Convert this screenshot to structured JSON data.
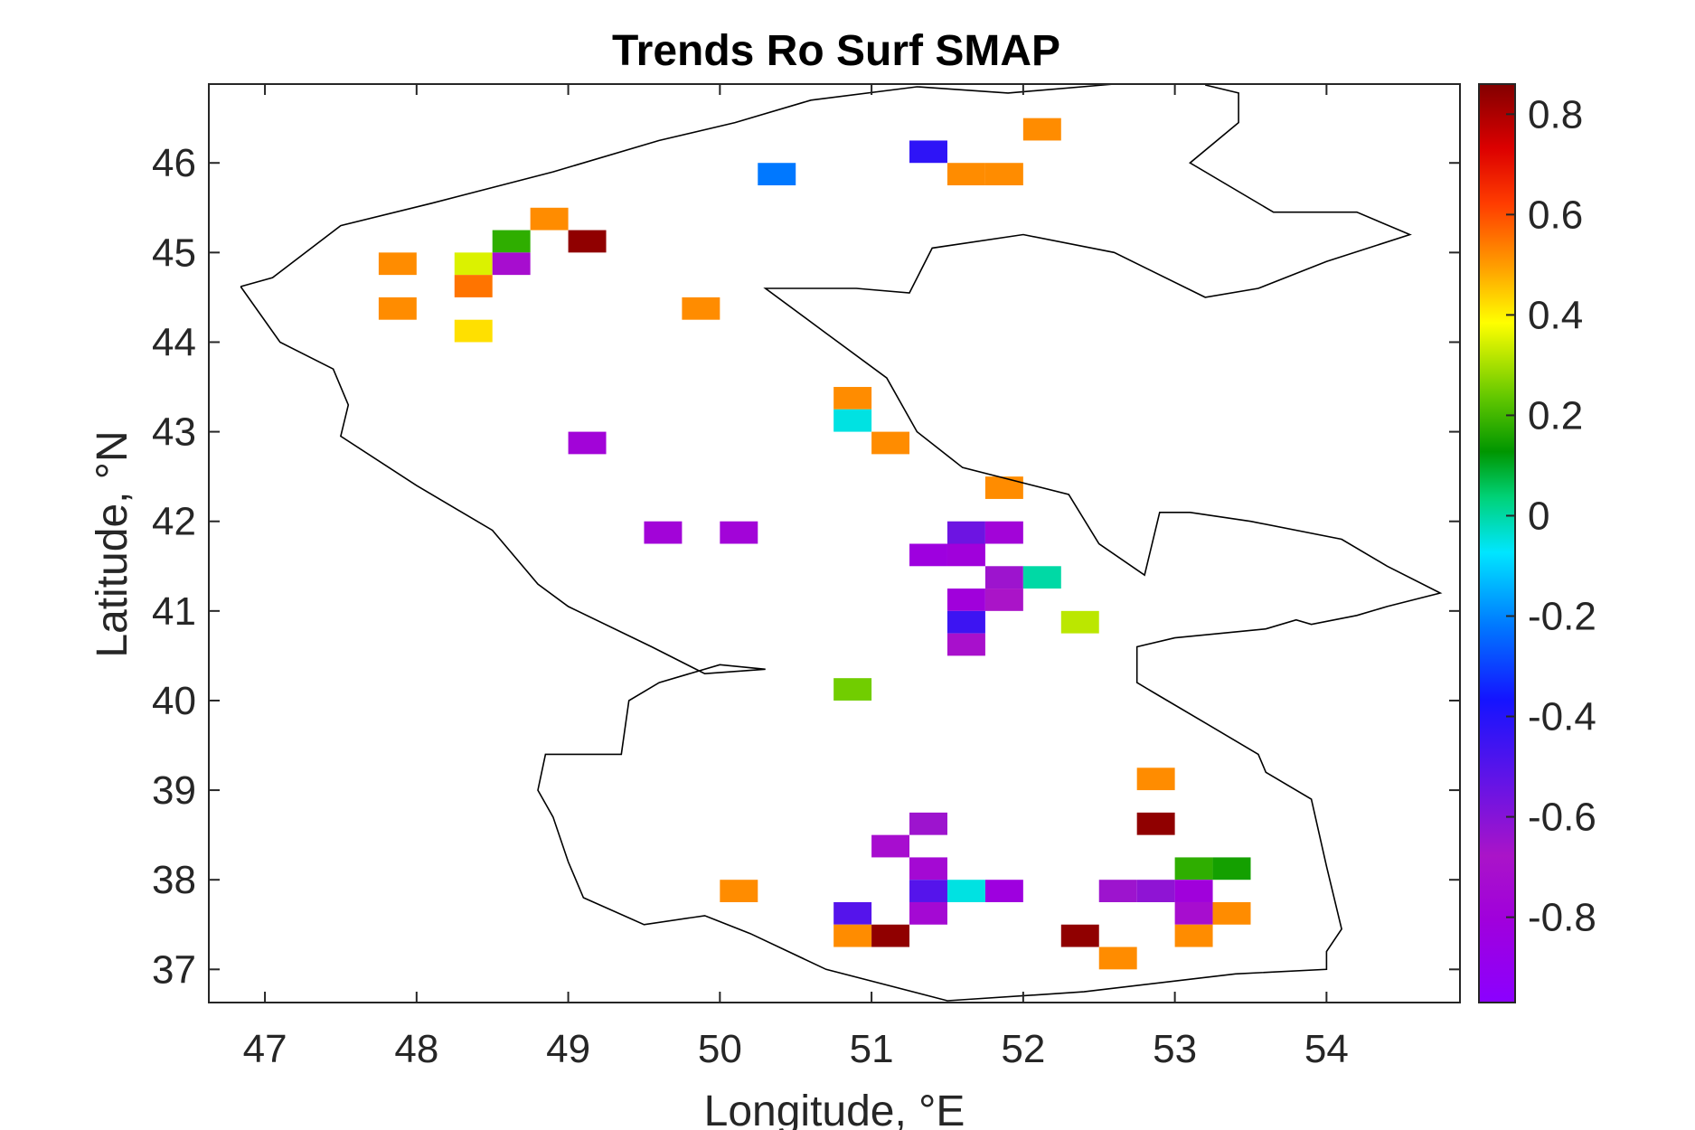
{
  "chart_data": {
    "type": "heatmap",
    "title": "Trends Ro Surf SMAP",
    "xlabel": "Longitude, °E",
    "ylabel": "Latitude, °N",
    "xlim": [
      46.63,
      54.88
    ],
    "ylim": [
      36.63,
      46.88
    ],
    "xticks": [
      47,
      48,
      49,
      50,
      51,
      52,
      53,
      54
    ],
    "yticks": [
      37,
      38,
      39,
      40,
      41,
      42,
      43,
      44,
      45,
      46
    ],
    "colorbar": {
      "range": [
        -0.97,
        0.86
      ],
      "ticks": [
        -0.8,
        -0.6,
        -0.4,
        -0.2,
        0,
        0.2,
        0.4,
        0.6,
        0.8
      ],
      "tick_labels": [
        "-0.8",
        "-0.6",
        "-0.4",
        "-0.2",
        "0",
        "0.2",
        "0.4",
        "0.6",
        "0.8"
      ],
      "colormap": "purple-blue-cyan-green-yellow-orange-red-darkred"
    },
    "cell_size_deg": 0.25,
    "grid": false,
    "cells": [
      {
        "lon": 52.125,
        "lat": 46.375,
        "value": 0.52
      },
      {
        "lon": 51.375,
        "lat": 46.125,
        "value": -0.42
      },
      {
        "lon": 50.375,
        "lat": 45.875,
        "value": -0.22
      },
      {
        "lon": 51.625,
        "lat": 45.875,
        "value": 0.52
      },
      {
        "lon": 51.875,
        "lat": 45.875,
        "value": 0.52
      },
      {
        "lon": 48.875,
        "lat": 45.375,
        "value": 0.52
      },
      {
        "lon": 48.625,
        "lat": 45.125,
        "value": 0.18
      },
      {
        "lon": 49.125,
        "lat": 45.125,
        "value": 0.84
      },
      {
        "lon": 47.875,
        "lat": 44.875,
        "value": 0.52
      },
      {
        "lon": 48.375,
        "lat": 44.875,
        "value": 0.35
      },
      {
        "lon": 48.625,
        "lat": 44.875,
        "value": -0.72
      },
      {
        "lon": 48.375,
        "lat": 44.625,
        "value": 0.55
      },
      {
        "lon": 47.875,
        "lat": 44.375,
        "value": 0.52
      },
      {
        "lon": 49.875,
        "lat": 44.375,
        "value": 0.52
      },
      {
        "lon": 48.375,
        "lat": 44.125,
        "value": 0.42
      },
      {
        "lon": 50.875,
        "lat": 43.375,
        "value": 0.52
      },
      {
        "lon": 50.875,
        "lat": 43.125,
        "value": -0.05
      },
      {
        "lon": 49.125,
        "lat": 42.875,
        "value": -0.78
      },
      {
        "lon": 51.125,
        "lat": 42.875,
        "value": 0.52
      },
      {
        "lon": 51.875,
        "lat": 42.375,
        "value": 0.52
      },
      {
        "lon": 49.625,
        "lat": 41.875,
        "value": -0.78
      },
      {
        "lon": 50.125,
        "lat": 41.875,
        "value": -0.78
      },
      {
        "lon": 51.625,
        "lat": 41.875,
        "value": -0.55
      },
      {
        "lon": 51.875,
        "lat": 41.875,
        "value": -0.78
      },
      {
        "lon": 51.375,
        "lat": 41.625,
        "value": -0.82
      },
      {
        "lon": 51.625,
        "lat": 41.625,
        "value": -0.8
      },
      {
        "lon": 51.875,
        "lat": 41.375,
        "value": -0.65
      },
      {
        "lon": 52.125,
        "lat": 41.375,
        "value": 0.0
      },
      {
        "lon": 51.625,
        "lat": 41.125,
        "value": -0.8
      },
      {
        "lon": 51.875,
        "lat": 41.125,
        "value": -0.68
      },
      {
        "lon": 51.625,
        "lat": 40.875,
        "value": -0.45
      },
      {
        "lon": 52.375,
        "lat": 40.875,
        "value": 0.32
      },
      {
        "lon": 51.625,
        "lat": 40.625,
        "value": -0.7
      },
      {
        "lon": 50.875,
        "lat": 40.125,
        "value": 0.25
      },
      {
        "lon": 52.875,
        "lat": 39.125,
        "value": 0.52
      },
      {
        "lon": 51.375,
        "lat": 38.625,
        "value": -0.65
      },
      {
        "lon": 52.875,
        "lat": 38.625,
        "value": 0.84
      },
      {
        "lon": 51.125,
        "lat": 38.375,
        "value": -0.72
      },
      {
        "lon": 51.375,
        "lat": 38.125,
        "value": -0.75
      },
      {
        "lon": 53.125,
        "lat": 38.125,
        "value": 0.18
      },
      {
        "lon": 53.375,
        "lat": 38.125,
        "value": 0.15
      },
      {
        "lon": 50.125,
        "lat": 37.875,
        "value": 0.52
      },
      {
        "lon": 51.375,
        "lat": 37.875,
        "value": -0.5
      },
      {
        "lon": 51.625,
        "lat": 37.875,
        "value": -0.05
      },
      {
        "lon": 51.875,
        "lat": 37.875,
        "value": -0.82
      },
      {
        "lon": 52.625,
        "lat": 37.875,
        "value": -0.65
      },
      {
        "lon": 52.875,
        "lat": 37.875,
        "value": -0.62
      },
      {
        "lon": 53.125,
        "lat": 37.875,
        "value": -0.8
      },
      {
        "lon": 50.875,
        "lat": 37.625,
        "value": -0.5
      },
      {
        "lon": 51.375,
        "lat": 37.625,
        "value": -0.75
      },
      {
        "lon": 53.125,
        "lat": 37.625,
        "value": -0.72
      },
      {
        "lon": 53.375,
        "lat": 37.625,
        "value": 0.52
      },
      {
        "lon": 50.875,
        "lat": 37.375,
        "value": 0.52
      },
      {
        "lon": 51.125,
        "lat": 37.375,
        "value": 0.84
      },
      {
        "lon": 52.375,
        "lat": 37.375,
        "value": 0.84
      },
      {
        "lon": 53.125,
        "lat": 37.375,
        "value": 0.52
      },
      {
        "lon": 52.625,
        "lat": 37.125,
        "value": 0.52
      }
    ],
    "coastline": [
      [
        [
          46.84,
          44.62
        ],
        [
          47.05,
          44.72
        ],
        [
          47.5,
          45.3
        ],
        [
          48.1,
          45.55
        ],
        [
          48.9,
          45.9
        ],
        [
          49.6,
          46.25
        ],
        [
          50.1,
          46.45
        ],
        [
          50.6,
          46.7
        ],
        [
          51.3,
          46.85
        ],
        [
          51.9,
          46.78
        ],
        [
          52.6,
          46.88
        ]
      ],
      [
        [
          53.2,
          46.87
        ],
        [
          53.42,
          46.78
        ],
        [
          53.42,
          46.45
        ],
        [
          53.1,
          46.0
        ],
        [
          53.65,
          45.45
        ],
        [
          54.2,
          45.45
        ],
        [
          54.55,
          45.2
        ],
        [
          54.0,
          44.9
        ],
        [
          53.55,
          44.6
        ],
        [
          53.2,
          44.5
        ],
        [
          52.6,
          45.0
        ],
        [
          52.0,
          45.2
        ],
        [
          51.4,
          45.05
        ],
        [
          51.25,
          44.55
        ],
        [
          50.9,
          44.6
        ],
        [
          50.3,
          44.6
        ],
        [
          50.7,
          44.1
        ],
        [
          51.1,
          43.6
        ],
        [
          51.3,
          43.0
        ],
        [
          51.6,
          42.6
        ],
        [
          52.3,
          42.3
        ],
        [
          52.5,
          41.75
        ],
        [
          52.8,
          41.4
        ],
        [
          52.9,
          42.1
        ],
        [
          53.1,
          42.1
        ],
        [
          53.5,
          42.0
        ],
        [
          54.1,
          41.8
        ],
        [
          54.4,
          41.5
        ],
        [
          54.75,
          41.2
        ],
        [
          54.4,
          41.05
        ],
        [
          54.2,
          40.95
        ],
        [
          53.9,
          40.85
        ],
        [
          53.8,
          40.9
        ],
        [
          53.6,
          40.8
        ],
        [
          53.0,
          40.7
        ],
        [
          52.75,
          40.6
        ],
        [
          52.75,
          40.2
        ],
        [
          52.9,
          40.05
        ],
        [
          53.2,
          39.75
        ],
        [
          53.55,
          39.4
        ],
        [
          53.6,
          39.2
        ],
        [
          53.9,
          38.9
        ],
        [
          54.0,
          38.15
        ],
        [
          54.1,
          37.45
        ],
        [
          54.0,
          37.2
        ],
        [
          54.0,
          37.0
        ],
        [
          53.4,
          36.95
        ],
        [
          52.4,
          36.75
        ],
        [
          51.5,
          36.65
        ],
        [
          50.7,
          37.0
        ],
        [
          50.2,
          37.4
        ],
        [
          49.9,
          37.6
        ],
        [
          49.5,
          37.5
        ],
        [
          49.1,
          37.8
        ],
        [
          49.0,
          38.2
        ],
        [
          48.9,
          38.7
        ],
        [
          48.8,
          39.0
        ],
        [
          48.85,
          39.4
        ],
        [
          49.35,
          39.4
        ],
        [
          49.4,
          40.0
        ],
        [
          49.6,
          40.2
        ],
        [
          50.0,
          40.4
        ],
        [
          50.3,
          40.35
        ],
        [
          49.9,
          40.3
        ],
        [
          49.55,
          40.6
        ],
        [
          49.0,
          41.05
        ],
        [
          48.8,
          41.3
        ],
        [
          48.5,
          41.9
        ],
        [
          48.0,
          42.4
        ],
        [
          47.5,
          42.95
        ],
        [
          47.55,
          43.3
        ],
        [
          47.45,
          43.7
        ],
        [
          47.1,
          44.0
        ],
        [
          46.84,
          44.62
        ]
      ]
    ]
  }
}
